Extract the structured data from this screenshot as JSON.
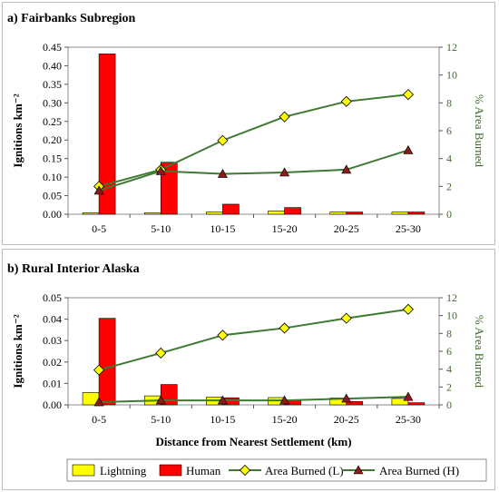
{
  "colors": {
    "lightning": "#ffff00",
    "human": "#ff0000",
    "area_line": "#3e7a32",
    "area_l_marker": "#ffff00",
    "area_h_marker": "#8b1a1a",
    "right_axis": "#3e6b2e"
  },
  "chart_data": [
    {
      "type": "bar",
      "title": "a) Fairbanks Subregion",
      "xlabel": "",
      "ylabel": "Ignitions km⁻²",
      "ylabel2": "% Area Burned",
      "categories": [
        "0-5",
        "5-10",
        "10-15",
        "15-20",
        "20-25",
        "25-30"
      ],
      "ylim": [
        0,
        0.45
      ],
      "yticks": [
        "0.00",
        "0.05",
        "0.10",
        "0.15",
        "0.20",
        "0.25",
        "0.30",
        "0.35",
        "0.40",
        "0.45"
      ],
      "y2lim": [
        0,
        12
      ],
      "y2ticks": [
        "0",
        "2",
        "4",
        "6",
        "8",
        "10",
        "12"
      ],
      "series": [
        {
          "name": "Lightning",
          "kind": "bar",
          "axis": "left",
          "values": [
            0.004,
            0.004,
            0.006,
            0.009,
            0.006,
            0.006
          ]
        },
        {
          "name": "Human",
          "kind": "bar",
          "axis": "left",
          "values": [
            0.432,
            0.14,
            0.027,
            0.018,
            0.006,
            0.006
          ]
        },
        {
          "name": "Area Burned (L)",
          "kind": "line",
          "axis": "right",
          "marker": "diamond",
          "values": [
            2.0,
            3.2,
            5.3,
            7.0,
            8.1,
            8.6
          ]
        },
        {
          "name": "Area Burned (H)",
          "kind": "line",
          "axis": "right",
          "marker": "triangle",
          "values": [
            1.7,
            3.1,
            2.9,
            3.0,
            3.2,
            4.6
          ]
        }
      ]
    },
    {
      "type": "bar",
      "title": "b) Rural Interior Alaska",
      "xlabel": "Distance from Nearest Settlement (km)",
      "ylabel": "Ignitions km⁻²",
      "ylabel2": "% Area Burned",
      "categories": [
        "0-5",
        "5-10",
        "10-15",
        "15-20",
        "20-25",
        "25-30"
      ],
      "ylim": [
        0,
        0.05
      ],
      "yticks": [
        "0.00",
        "0.01",
        "0.02",
        "0.03",
        "0.04",
        "0.05"
      ],
      "y2lim": [
        0,
        12
      ],
      "y2ticks": [
        "0",
        "2",
        "4",
        "6",
        "8",
        "10",
        "12"
      ],
      "series": [
        {
          "name": "Lightning",
          "kind": "bar",
          "axis": "left",
          "values": [
            0.0058,
            0.0042,
            0.0036,
            0.0034,
            0.0032,
            0.003
          ]
        },
        {
          "name": "Human",
          "kind": "bar",
          "axis": "left",
          "values": [
            0.0404,
            0.0095,
            0.0033,
            0.0023,
            0.0016,
            0.001
          ]
        },
        {
          "name": "Area Burned (L)",
          "kind": "line",
          "axis": "right",
          "marker": "diamond",
          "values": [
            3.9,
            5.8,
            7.8,
            8.6,
            9.7,
            10.7
          ]
        },
        {
          "name": "Area Burned (H)",
          "kind": "line",
          "axis": "right",
          "marker": "triangle",
          "values": [
            0.3,
            0.5,
            0.5,
            0.5,
            0.7,
            0.9
          ]
        }
      ]
    }
  ],
  "legend": {
    "placement": "bottom",
    "items": [
      "Lightning",
      "Human",
      "Area Burned (L)",
      "Area Burned (H)"
    ]
  }
}
